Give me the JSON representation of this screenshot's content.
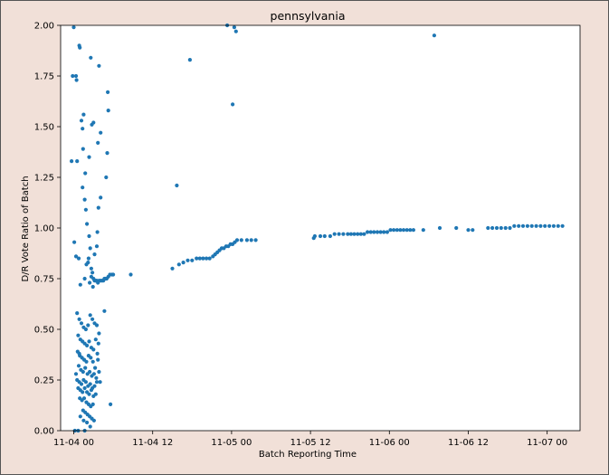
{
  "colors": {
    "background": "#f1e0d8",
    "plot_background": "#ffffff",
    "marker": "#1f77b4",
    "axes": "#000000"
  },
  "chart_data": {
    "type": "scatter",
    "title": "pennsylvania",
    "xlabel": "Batch Reporting Time",
    "ylabel": "D/R Vote Ratio of Batch",
    "x_unit": "datetime",
    "xlim": [
      "2020-11-03T22:00",
      "2020-11-07T05:00"
    ],
    "ylim": [
      0,
      2
    ],
    "x_ticks": [
      {
        "value": "2020-11-04T00:00",
        "label": "11-04 00"
      },
      {
        "value": "2020-11-04T12:00",
        "label": "11-04 12"
      },
      {
        "value": "2020-11-05T00:00",
        "label": "11-05 00"
      },
      {
        "value": "2020-11-05T12:00",
        "label": "11-05 12"
      },
      {
        "value": "2020-11-06T00:00",
        "label": "11-06 00"
      },
      {
        "value": "2020-11-06T12:00",
        "label": "11-06 12"
      },
      {
        "value": "2020-11-07T00:00",
        "label": "11-07 00"
      }
    ],
    "y_ticks": [
      {
        "value": 0.0,
        "label": "0.00"
      },
      {
        "value": 0.25,
        "label": "0.25"
      },
      {
        "value": 0.5,
        "label": "0.50"
      },
      {
        "value": 0.75,
        "label": "0.75"
      },
      {
        "value": 1.0,
        "label": "1.00"
      },
      {
        "value": 1.25,
        "label": "1.25"
      },
      {
        "value": 1.5,
        "label": "1.50"
      },
      {
        "value": 1.75,
        "label": "1.75"
      },
      {
        "value": 2.0,
        "label": "2.00"
      }
    ],
    "grid": false,
    "legend": "none",
    "series": [
      {
        "color": "#1f77b4",
        "points": [
          [
            "2020-11-03T23:40",
            1.33
          ],
          [
            "2020-11-03T23:50",
            1.75
          ],
          [
            "2020-11-04T00:20",
            1.75
          ],
          [
            "2020-11-04T00:25",
            1.73
          ],
          [
            "2020-11-04T00:50",
            1.9
          ],
          [
            "2020-11-04T00:55",
            1.89
          ],
          [
            "2020-11-04T00:00",
            1.99
          ],
          [
            "2020-11-04T00:30",
            1.33
          ],
          [
            "2020-11-04T01:10",
            1.53
          ],
          [
            "2020-11-04T01:20",
            1.49
          ],
          [
            "2020-11-04T01:30",
            1.56
          ],
          [
            "2020-11-04T01:25",
            1.39
          ],
          [
            "2020-11-04T01:45",
            1.27
          ],
          [
            "2020-11-04T02:20",
            1.35
          ],
          [
            "2020-11-04T02:45",
            1.51
          ],
          [
            "2020-11-04T03:00",
            1.52
          ],
          [
            "2020-11-04T02:35",
            1.84
          ],
          [
            "2020-11-04T03:50",
            1.8
          ],
          [
            "2020-11-04T05:10",
            1.67
          ],
          [
            "2020-11-04T05:15",
            1.58
          ],
          [
            "2020-11-04T05:05",
            1.37
          ],
          [
            "2020-11-04T04:55",
            1.25
          ],
          [
            "2020-11-04T04:05",
            1.47
          ],
          [
            "2020-11-04T03:40",
            1.42
          ],
          [
            "2020-11-04T03:45",
            1.1
          ],
          [
            "2020-11-04T04:05",
            1.15
          ],
          [
            "2020-11-04T03:35",
            0.98
          ],
          [
            "2020-11-04T00:20",
            0.86
          ],
          [
            "2020-11-04T00:45",
            0.85
          ],
          [
            "2020-11-04T00:05",
            0.93
          ],
          [
            "2020-11-04T01:00",
            0.72
          ],
          [
            "2020-11-04T01:20",
            1.2
          ],
          [
            "2020-11-04T01:40",
            1.14
          ],
          [
            "2020-11-04T01:50",
            1.09
          ],
          [
            "2020-11-04T02:00",
            1.02
          ],
          [
            "2020-11-04T02:20",
            0.96
          ],
          [
            "2020-11-04T02:30",
            0.9
          ],
          [
            "2020-11-04T02:10",
            0.83
          ],
          [
            "2020-11-04T02:40",
            0.8
          ],
          [
            "2020-11-04T03:10",
            0.87
          ],
          [
            "2020-11-04T03:30",
            0.91
          ],
          [
            "2020-11-04T01:40",
            0.75
          ],
          [
            "2020-11-04T02:15",
            0.85
          ],
          [
            "2020-11-04T01:55",
            0.82
          ],
          [
            "2020-11-04T02:25",
            0.73
          ],
          [
            "2020-11-04T03:20",
            0.74
          ],
          [
            "2020-11-04T02:40",
            0.76
          ],
          [
            "2020-11-04T02:50",
            0.78
          ],
          [
            "2020-11-04T03:00",
            0.75
          ],
          [
            "2020-11-04T03:10",
            0.74
          ],
          [
            "2020-11-04T03:20",
            0.74
          ],
          [
            "2020-11-04T03:30",
            0.74
          ],
          [
            "2020-11-04T03:40",
            0.73
          ],
          [
            "2020-11-04T03:50",
            0.74
          ],
          [
            "2020-11-04T04:00",
            0.74
          ],
          [
            "2020-11-04T04:10",
            0.74
          ],
          [
            "2020-11-04T04:20",
            0.74
          ],
          [
            "2020-11-04T04:30",
            0.74
          ],
          [
            "2020-11-04T04:40",
            0.75
          ],
          [
            "2020-11-04T04:50",
            0.75
          ],
          [
            "2020-11-04T05:00",
            0.75
          ],
          [
            "2020-11-04T05:15",
            0.76
          ],
          [
            "2020-11-04T05:30",
            0.77
          ],
          [
            "2020-11-04T05:50",
            0.77
          ],
          [
            "2020-11-04T06:00",
            0.77
          ],
          [
            "2020-11-04T08:40",
            0.77
          ],
          [
            "2020-11-04T02:55",
            0.71
          ],
          [
            "2020-11-04T04:40",
            0.59
          ],
          [
            "2020-11-04T05:35",
            0.13
          ],
          [
            "2020-11-04T00:30",
            0.58
          ],
          [
            "2020-11-04T00:50",
            0.55
          ],
          [
            "2020-11-04T01:10",
            0.53
          ],
          [
            "2020-11-04T01:30",
            0.51
          ],
          [
            "2020-11-04T01:50",
            0.5
          ],
          [
            "2020-11-04T02:10",
            0.52
          ],
          [
            "2020-11-04T02:30",
            0.57
          ],
          [
            "2020-11-04T02:50",
            0.55
          ],
          [
            "2020-11-04T03:10",
            0.53
          ],
          [
            "2020-11-04T03:30",
            0.52
          ],
          [
            "2020-11-04T03:50",
            0.48
          ],
          [
            "2020-11-04T00:40",
            0.47
          ],
          [
            "2020-11-04T01:00",
            0.45
          ],
          [
            "2020-11-04T01:20",
            0.44
          ],
          [
            "2020-11-04T01:40",
            0.43
          ],
          [
            "2020-11-04T02:00",
            0.42
          ],
          [
            "2020-11-04T02:20",
            0.44
          ],
          [
            "2020-11-04T02:40",
            0.41
          ],
          [
            "2020-11-04T03:00",
            0.4
          ],
          [
            "2020-11-04T03:20",
            0.45
          ],
          [
            "2020-11-04T00:35",
            0.39
          ],
          [
            "2020-11-04T00:55",
            0.37
          ],
          [
            "2020-11-04T01:15",
            0.36
          ],
          [
            "2020-11-04T01:35",
            0.35
          ],
          [
            "2020-11-04T01:55",
            0.34
          ],
          [
            "2020-11-04T02:15",
            0.37
          ],
          [
            "2020-11-04T02:35",
            0.36
          ],
          [
            "2020-11-04T02:55",
            0.34
          ],
          [
            "2020-11-04T03:15",
            0.31
          ],
          [
            "2020-11-04T03:35",
            0.38
          ],
          [
            "2020-11-04T00:45",
            0.32
          ],
          [
            "2020-11-04T01:05",
            0.3
          ],
          [
            "2020-11-04T01:25",
            0.29
          ],
          [
            "2020-11-04T01:45",
            0.31
          ],
          [
            "2020-11-04T02:05",
            0.28
          ],
          [
            "2020-11-04T02:25",
            0.29
          ],
          [
            "2020-11-04T02:45",
            0.27
          ],
          [
            "2020-11-04T03:05",
            0.28
          ],
          [
            "2020-11-04T03:25",
            0.26
          ],
          [
            "2020-11-04T00:30",
            0.25
          ],
          [
            "2020-11-04T00:50",
            0.24
          ],
          [
            "2020-11-04T01:10",
            0.23
          ],
          [
            "2020-11-04T01:30",
            0.25
          ],
          [
            "2020-11-04T01:50",
            0.24
          ],
          [
            "2020-11-04T02:10",
            0.22
          ],
          [
            "2020-11-04T02:30",
            0.23
          ],
          [
            "2020-11-04T02:50",
            0.21
          ],
          [
            "2020-11-04T03:10",
            0.22
          ],
          [
            "2020-11-04T03:30",
            0.24
          ],
          [
            "2020-11-04T00:40",
            0.21
          ],
          [
            "2020-11-04T01:00",
            0.2
          ],
          [
            "2020-11-04T01:20",
            0.19
          ],
          [
            "2020-11-04T01:40",
            0.21
          ],
          [
            "2020-11-04T02:00",
            0.19
          ],
          [
            "2020-11-04T02:20",
            0.18
          ],
          [
            "2020-11-04T02:40",
            0.2
          ],
          [
            "2020-11-04T03:00",
            0.17
          ],
          [
            "2020-11-04T03:20",
            0.18
          ],
          [
            "2020-11-04T00:55",
            0.16
          ],
          [
            "2020-11-04T01:15",
            0.15
          ],
          [
            "2020-11-04T01:35",
            0.16
          ],
          [
            "2020-11-04T01:55",
            0.14
          ],
          [
            "2020-11-04T02:15",
            0.13
          ],
          [
            "2020-11-04T02:35",
            0.12
          ],
          [
            "2020-11-04T02:55",
            0.13
          ],
          [
            "2020-11-04T01:25",
            0.1
          ],
          [
            "2020-11-04T01:45",
            0.09
          ],
          [
            "2020-11-04T02:05",
            0.08
          ],
          [
            "2020-11-04T02:25",
            0.07
          ],
          [
            "2020-11-04T02:45",
            0.06
          ],
          [
            "2020-11-04T03:05",
            0.05
          ],
          [
            "2020-11-04T01:00",
            0.07
          ],
          [
            "2020-11-04T01:30",
            0.05
          ],
          [
            "2020-11-04T02:00",
            0.04
          ],
          [
            "2020-11-04T02:30",
            0.02
          ],
          [
            "2020-11-04T00:10",
            0.0
          ],
          [
            "2020-11-04T00:40",
            0.0
          ],
          [
            "2020-11-04T01:40",
            0.0
          ],
          [
            "2020-11-04T03:40",
            0.35
          ],
          [
            "2020-11-04T03:50",
            0.29
          ],
          [
            "2020-11-04T00:20",
            0.28
          ],
          [
            "2020-11-04T04:00",
            0.24
          ],
          [
            "2020-11-04T00:50",
            0.38
          ],
          [
            "2020-11-04T03:45",
            0.43
          ],
          [
            "2020-11-04T15:40",
            1.21
          ],
          [
            "2020-11-04T17:40",
            1.83
          ],
          [
            "2020-11-04T23:20",
            2.0
          ],
          [
            "2020-11-05T00:25",
            1.99
          ],
          [
            "2020-11-05T00:40",
            1.97
          ],
          [
            "2020-11-05T00:10",
            1.61
          ],
          [
            "2020-11-06T06:50",
            1.95
          ],
          [
            "2020-11-04T15:00",
            0.8
          ],
          [
            "2020-11-04T16:00",
            0.82
          ],
          [
            "2020-11-04T16:40",
            0.83
          ],
          [
            "2020-11-04T17:20",
            0.84
          ],
          [
            "2020-11-04T18:00",
            0.84
          ],
          [
            "2020-11-04T18:40",
            0.85
          ],
          [
            "2020-11-04T19:10",
            0.85
          ],
          [
            "2020-11-04T19:40",
            0.85
          ],
          [
            "2020-11-04T20:10",
            0.85
          ],
          [
            "2020-11-04T20:40",
            0.85
          ],
          [
            "2020-11-04T21:10",
            0.86
          ],
          [
            "2020-11-04T21:30",
            0.87
          ],
          [
            "2020-11-04T21:50",
            0.88
          ],
          [
            "2020-11-04T22:10",
            0.89
          ],
          [
            "2020-11-04T22:30",
            0.9
          ],
          [
            "2020-11-04T22:50",
            0.9
          ],
          [
            "2020-11-04T23:10",
            0.91
          ],
          [
            "2020-11-04T23:30",
            0.91
          ],
          [
            "2020-11-04T23:50",
            0.92
          ],
          [
            "2020-11-05T00:10",
            0.92
          ],
          [
            "2020-11-05T00:30",
            0.93
          ],
          [
            "2020-11-05T00:50",
            0.94
          ],
          [
            "2020-11-05T01:30",
            0.94
          ],
          [
            "2020-11-05T02:20",
            0.94
          ],
          [
            "2020-11-05T03:00",
            0.94
          ],
          [
            "2020-11-05T03:40",
            0.94
          ],
          [
            "2020-11-05T12:30",
            0.95
          ],
          [
            "2020-11-05T12:40",
            0.96
          ],
          [
            "2020-11-05T13:30",
            0.96
          ],
          [
            "2020-11-05T14:10",
            0.96
          ],
          [
            "2020-11-05T15:00",
            0.96
          ],
          [
            "2020-11-05T15:40",
            0.97
          ],
          [
            "2020-11-05T16:20",
            0.97
          ],
          [
            "2020-11-05T17:00",
            0.97
          ],
          [
            "2020-11-05T17:40",
            0.97
          ],
          [
            "2020-11-05T18:10",
            0.97
          ],
          [
            "2020-11-05T18:40",
            0.97
          ],
          [
            "2020-11-05T19:10",
            0.97
          ],
          [
            "2020-11-05T19:40",
            0.97
          ],
          [
            "2020-11-05T20:10",
            0.97
          ],
          [
            "2020-11-05T20:40",
            0.98
          ],
          [
            "2020-11-05T21:10",
            0.98
          ],
          [
            "2020-11-05T21:40",
            0.98
          ],
          [
            "2020-11-05T22:10",
            0.98
          ],
          [
            "2020-11-05T22:40",
            0.98
          ],
          [
            "2020-11-05T23:10",
            0.98
          ],
          [
            "2020-11-05T23:40",
            0.98
          ],
          [
            "2020-11-06T00:10",
            0.99
          ],
          [
            "2020-11-06T00:40",
            0.99
          ],
          [
            "2020-11-06T01:10",
            0.99
          ],
          [
            "2020-11-06T01:40",
            0.99
          ],
          [
            "2020-11-06T02:10",
            0.99
          ],
          [
            "2020-11-06T02:40",
            0.99
          ],
          [
            "2020-11-06T03:10",
            0.99
          ],
          [
            "2020-11-06T03:40",
            0.99
          ],
          [
            "2020-11-06T05:10",
            0.99
          ],
          [
            "2020-11-06T07:40",
            1.0
          ],
          [
            "2020-11-06T10:10",
            1.0
          ],
          [
            "2020-11-06T12:00",
            0.99
          ],
          [
            "2020-11-06T12:40",
            0.99
          ],
          [
            "2020-11-06T15:00",
            1.0
          ],
          [
            "2020-11-06T15:40",
            1.0
          ],
          [
            "2020-11-06T16:20",
            1.0
          ],
          [
            "2020-11-06T17:00",
            1.0
          ],
          [
            "2020-11-06T17:40",
            1.0
          ],
          [
            "2020-11-06T18:20",
            1.0
          ],
          [
            "2020-11-06T19:00",
            1.01
          ],
          [
            "2020-11-06T19:40",
            1.01
          ],
          [
            "2020-11-06T20:20",
            1.01
          ],
          [
            "2020-11-06T21:00",
            1.01
          ],
          [
            "2020-11-06T21:40",
            1.01
          ],
          [
            "2020-11-06T22:20",
            1.01
          ],
          [
            "2020-11-06T23:00",
            1.01
          ],
          [
            "2020-11-06T23:40",
            1.01
          ],
          [
            "2020-11-07T00:20",
            1.01
          ],
          [
            "2020-11-07T01:00",
            1.01
          ],
          [
            "2020-11-07T01:40",
            1.01
          ],
          [
            "2020-11-07T02:20",
            1.01
          ]
        ]
      }
    ]
  }
}
